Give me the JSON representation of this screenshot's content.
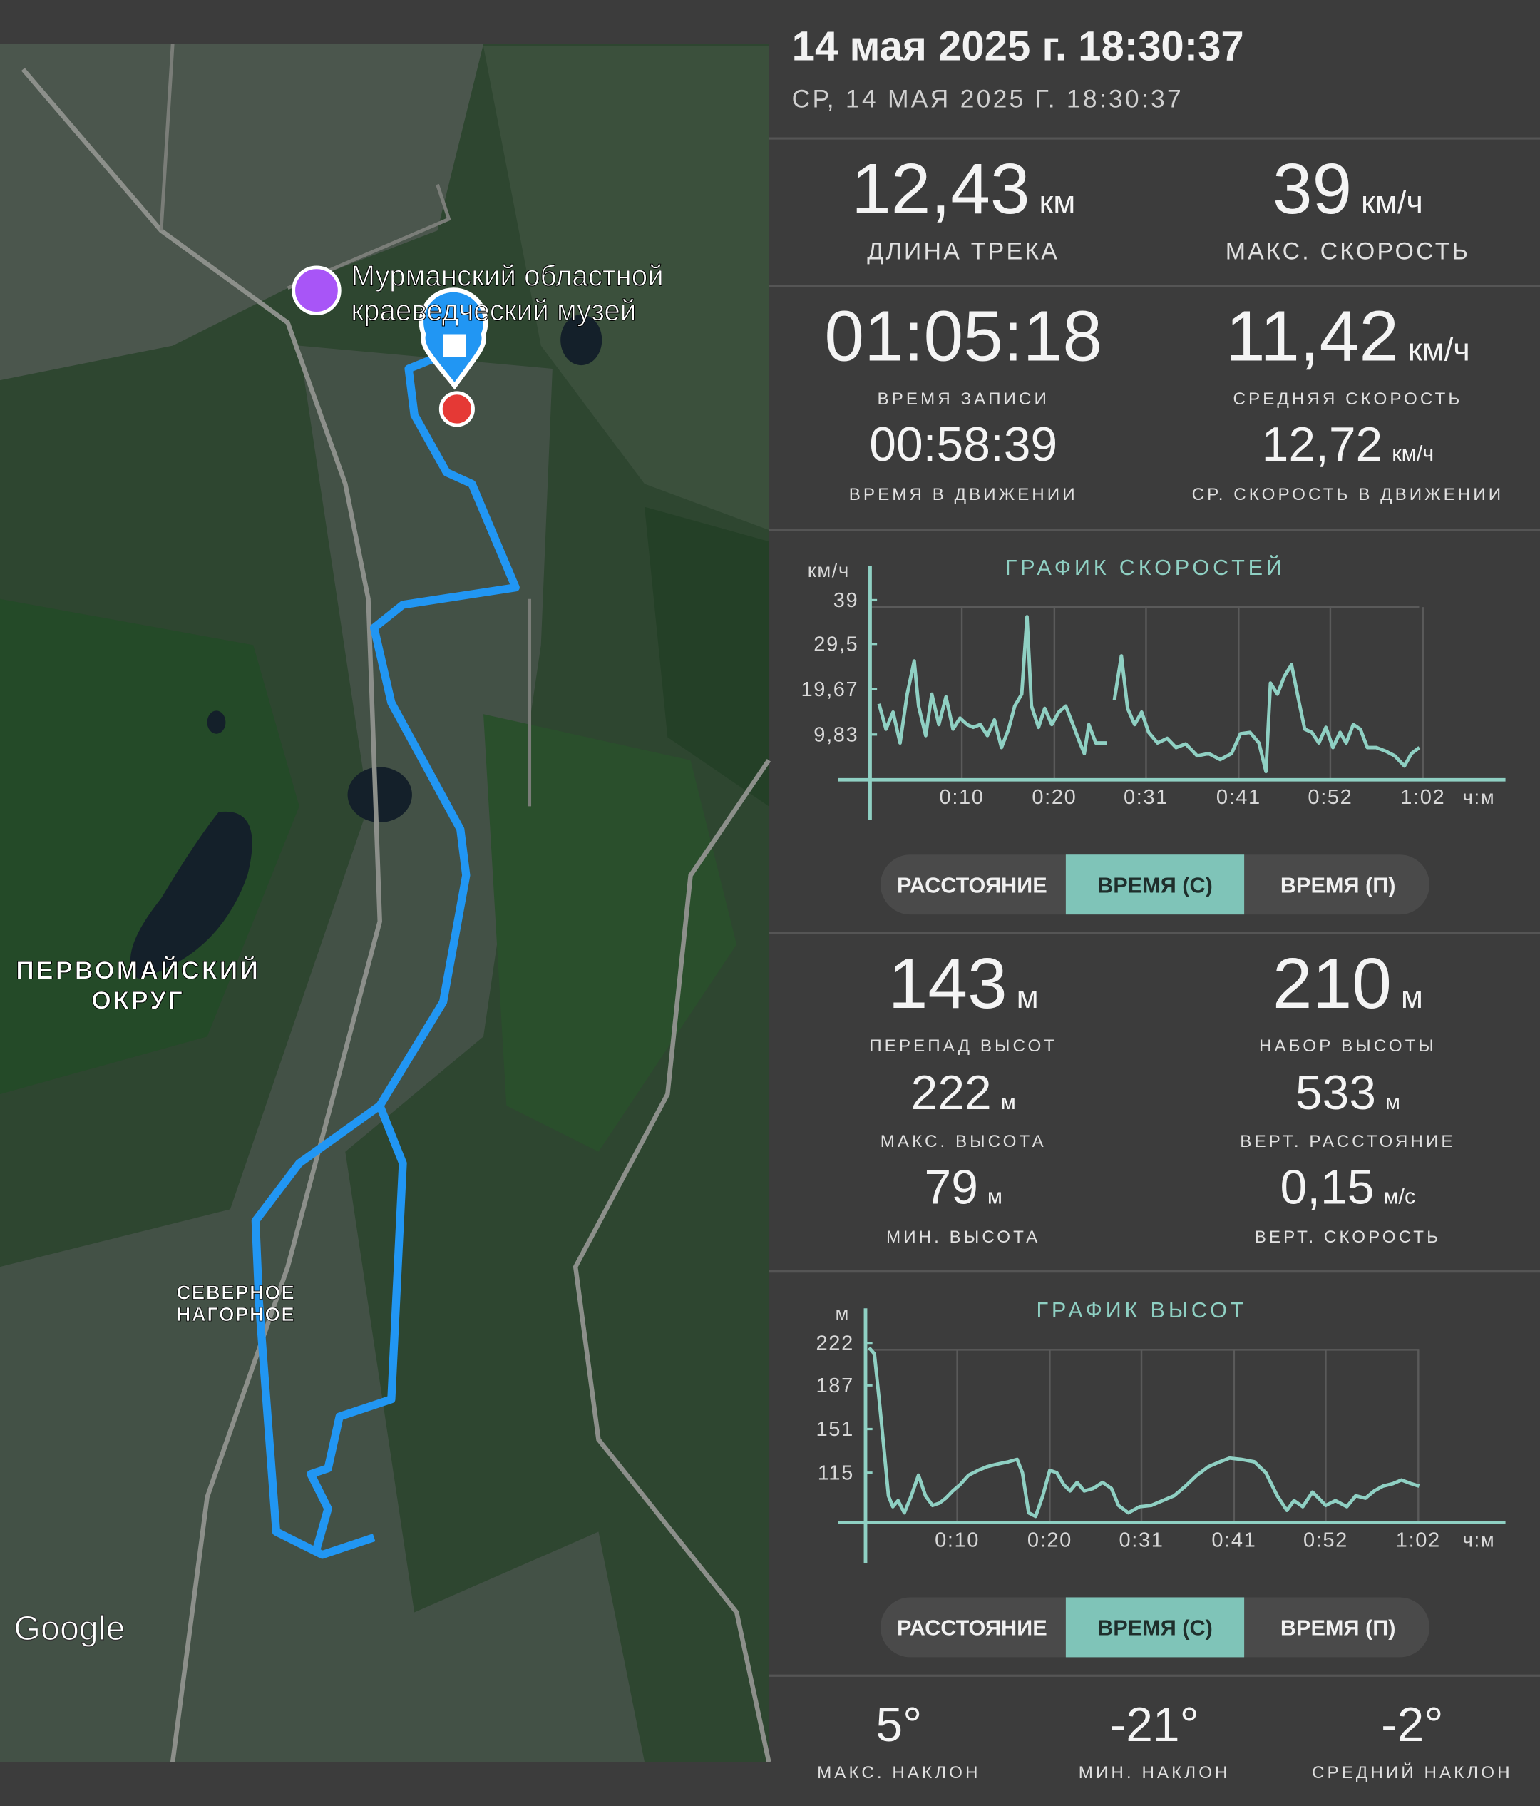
{
  "header": {
    "title": "14 мая 2025 г. 18:30:37",
    "subtitle": "СР, 14 МАЯ 2025 Г. 18:30:37"
  },
  "map": {
    "labels": [
      "Мурманский областной",
      "краеведческий музей",
      "ПЕРВОМАЙСКИЙ",
      "ОКРУГ",
      "СЕВЕРНОЕ",
      "НАГОРНОЕ"
    ],
    "attribution": "Google"
  },
  "track_stats": [
    {
      "value": "12,43",
      "unit": "км",
      "label": "ДЛИНА ТРЕКА"
    },
    {
      "value": "39",
      "unit": "км/ч",
      "label": "МАКС. СКОРОСТЬ"
    },
    {
      "value": "01:05:18",
      "label": "ВРЕМЯ ЗАПИСИ"
    },
    {
      "value": "11,42",
      "unit": "км/ч",
      "label": "СРЕДНЯЯ СКОРОСТЬ"
    },
    {
      "value": "00:58:39",
      "label": "ВРЕМЯ В ДВИЖЕНИИ"
    },
    {
      "value": "12,72",
      "unit": "км/ч",
      "label": "СР. СКОРОСТЬ В ДВИЖЕНИИ"
    }
  ],
  "speed_chart": {
    "type": "line",
    "title": "ГРАФИК СКОРОСТЕЙ",
    "y_label": "км/ч",
    "x_label": "ч:м",
    "color": "#8fd0c3",
    "grid": true,
    "x": [
      1.0,
      1.8,
      2.6,
      3.4,
      4.2,
      5.0,
      5.5,
      6.3,
      7.0,
      7.8,
      8.6,
      9.4,
      10.2,
      11.0,
      11.7,
      12.5,
      13.3,
      14.1,
      14.9,
      15.7,
      16.4,
      17.2,
      17.8,
      18.3,
      19.1,
      19.8,
      20.6,
      21.4,
      22.2,
      23.0,
      23.8,
      24.3,
      24.8,
      25.6,
      26.9,
      27.3,
      27.7,
      28.5,
      29.2,
      30.0,
      30.8,
      31.6,
      32.6,
      33.7,
      34.7,
      35.8,
      37.1,
      38.4,
      39.7,
      41.0,
      42.0,
      43.1,
      44.1,
      44.9,
      45.4,
      46.2,
      47.0,
      47.8,
      48.6,
      49.3,
      50.1,
      50.9,
      51.7,
      52.5,
      53.3,
      54.0,
      54.8,
      55.6,
      56.4,
      57.4,
      58.5,
      59.5,
      60.6,
      61.4,
      62.3
    ],
    "values": [
      16.5,
      11,
      14.7,
      8,
      18.6,
      25.8,
      16,
      9.6,
      18.6,
      12,
      18,
      11,
      13.4,
      12,
      11.4,
      12,
      9.6,
      13,
      7,
      11,
      16,
      18.6,
      35.4,
      16,
      11.4,
      15.5,
      12,
      14.7,
      16,
      12,
      8,
      5.7,
      12,
      8,
      8,
      null,
      17.3,
      26.9,
      15.5,
      12,
      14.7,
      10.3,
      8,
      9,
      7,
      7.8,
      5.2,
      5.7,
      4.4,
      5.7,
      10,
      10.3,
      8,
      1.8,
      21,
      18.6,
      22.5,
      25,
      17.3,
      11,
      10.3,
      8,
      11.4,
      7,
      10.3,
      8,
      12,
      11,
      7,
      7,
      6.2,
      5.2,
      3,
      5.7,
      7
    ],
    "xlim": [
      0,
      72
    ],
    "ylim": [
      0,
      39
    ],
    "xticks": [
      {
        "value": 10.4,
        "label": "0:10"
      },
      {
        "value": 20.9,
        "label": "0:20"
      },
      {
        "value": 31.3,
        "label": "0:31"
      },
      {
        "value": 41.8,
        "label": "0:41"
      },
      {
        "value": 52.2,
        "label": "0:52"
      },
      {
        "value": 62.7,
        "label": "1:02"
      }
    ],
    "yticks": [
      39,
      {
        "value": 29.5,
        "label": "29,5"
      },
      {
        "value": 19.67,
        "label": "19,67"
      },
      {
        "value": 9.83,
        "label": "9,83"
      }
    ]
  },
  "speed_buttons": {
    "options": [
      "РАССТОЯНИЕ",
      "ВРЕМЯ (С)",
      "ВРЕМЯ (П)"
    ],
    "selected": 1
  },
  "altitude_stats": [
    {
      "value": "143",
      "unit": "м",
      "label": "ПЕРЕПАД ВЫСОТ"
    },
    {
      "value": "210",
      "unit": "м",
      "label": "НАБОР ВЫСОТЫ"
    },
    {
      "value": "222",
      "unit": "м",
      "label": "МАКС. ВЫСОТА"
    },
    {
      "value": "533",
      "unit": "м",
      "label": "ВЕРТ. РАССТОЯНИЕ"
    },
    {
      "value": "79",
      "unit": "м",
      "label": "МИН. ВЫСОТА"
    },
    {
      "value": "0,15",
      "unit": "м/с",
      "label": "ВЕРТ. СКОРОСТЬ"
    }
  ],
  "altitude_chart": {
    "type": "line",
    "title": "ГРАФИК ВЫСОТ",
    "y_label": "м",
    "x_label": "ч:м",
    "color": "#8fd0c3",
    "grid": true,
    "x": [
      0.4,
      1.0,
      1.6,
      2.1,
      2.6,
      3.1,
      3.7,
      4.4,
      5.2,
      6.0,
      6.8,
      7.6,
      8.4,
      9.1,
      9.9,
      10.7,
      11.7,
      12.8,
      13.8,
      14.9,
      16.2,
      17.2,
      17.8,
      18.5,
      19.3,
      20.1,
      20.9,
      21.7,
      22.5,
      23.2,
      24.0,
      24.8,
      25.8,
      26.9,
      27.9,
      28.7,
      29.8,
      31.1,
      32.4,
      33.7,
      35.0,
      36.3,
      37.6,
      38.9,
      40.2,
      41.3,
      42.6,
      44.1,
      45.4,
      46.7,
      47.8,
      48.6,
      49.6,
      50.7,
      51.4,
      52.2,
      53.3,
      54.6,
      55.6,
      56.7,
      57.7,
      58.7,
      59.8,
      60.8,
      61.9,
      62.8
    ],
    "values": [
      218,
      213,
      171,
      134,
      96,
      87,
      92,
      82,
      96,
      113,
      96,
      88,
      90,
      94,
      100,
      105,
      113,
      117,
      120,
      122,
      124,
      126,
      115,
      82,
      79,
      96,
      117,
      115,
      105,
      100,
      107,
      100,
      102,
      107,
      102,
      88,
      82,
      87,
      88,
      92,
      96,
      104,
      113,
      120,
      124,
      127,
      126,
      124,
      115,
      96,
      84,
      92,
      87,
      99,
      94,
      88,
      92,
      87,
      96,
      94,
      100,
      104,
      106,
      109,
      106,
      104
    ],
    "xlim": [
      0,
      72
    ],
    "ylim": [
      74,
      222
    ],
    "xticks": [
      {
        "value": 10.4,
        "label": "0:10"
      },
      {
        "value": 20.9,
        "label": "0:20"
      },
      {
        "value": 31.3,
        "label": "0:31"
      },
      {
        "value": 41.8,
        "label": "0:41"
      },
      {
        "value": 52.2,
        "label": "0:52"
      },
      {
        "value": 62.7,
        "label": "1:02"
      }
    ],
    "yticks": [
      222,
      187,
      151,
      115
    ]
  },
  "altitude_buttons": {
    "options": [
      "РАССТОЯНИЕ",
      "ВРЕМЯ (С)",
      "ВРЕМЯ (П)"
    ],
    "selected": 1
  },
  "slope_stats": [
    {
      "value": "5°",
      "label": "МАКС. НАКЛОН"
    },
    {
      "value": "-21°",
      "label": "МИН. НАКЛОН"
    },
    {
      "value": "-2°",
      "label": "СРЕДНИЙ НАКЛОН"
    }
  ]
}
